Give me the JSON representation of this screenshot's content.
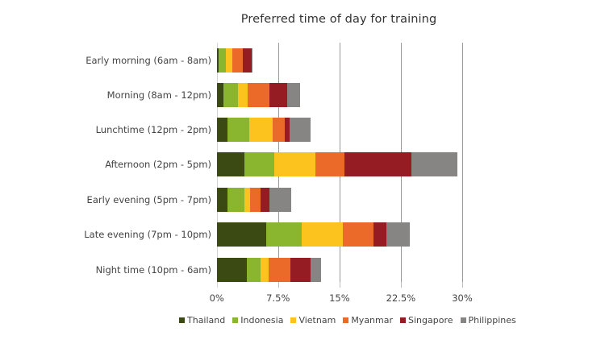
{
  "chart_data": {
    "type": "bar",
    "orientation": "horizontal",
    "stacked": true,
    "title": "Preferred time of day for training",
    "xlabel": "",
    "ylabel": "",
    "xlim": [
      0,
      30
    ],
    "x_ticks": [
      "0%",
      "7.5%",
      "15%",
      "22.5%",
      "30%"
    ],
    "x_tick_values": [
      0,
      7.5,
      15,
      22.5,
      30
    ],
    "grid": true,
    "legend_position": "bottom",
    "categories": [
      "Early morning (6am - 8am)",
      "Morning (8am - 12pm)",
      "Lunchtime (12pm - 2pm)",
      "Afternoon (2pm - 5pm)",
      "Early evening (5pm - 7pm)",
      "Late evening (7pm - 10pm)",
      "Night time (10pm - 6am)"
    ],
    "series": [
      {
        "name": "Thailand",
        "color": "#3b4a12",
        "values": [
          0.2,
          0.8,
          1.3,
          3.3,
          1.3,
          6.0,
          3.6
        ]
      },
      {
        "name": "Indonesia",
        "color": "#8ab52e",
        "values": [
          0.9,
          1.7,
          2.6,
          3.7,
          2.0,
          4.3,
          1.7
        ]
      },
      {
        "name": "Vietnam",
        "color": "#fcc31e",
        "values": [
          0.8,
          1.2,
          2.9,
          5.0,
          0.7,
          5.1,
          1.0
        ]
      },
      {
        "name": "Myanmar",
        "color": "#eb6a2a",
        "values": [
          1.2,
          2.7,
          1.5,
          3.6,
          1.3,
          3.7,
          2.7
        ]
      },
      {
        "name": "Singapore",
        "color": "#951c22",
        "values": [
          1.1,
          2.2,
          0.6,
          8.1,
          1.1,
          1.6,
          2.4
        ]
      },
      {
        "name": "Philippines",
        "color": "#868583",
        "values": [
          0.1,
          1.5,
          2.5,
          5.7,
          2.7,
          2.8,
          1.3
        ]
      }
    ]
  }
}
